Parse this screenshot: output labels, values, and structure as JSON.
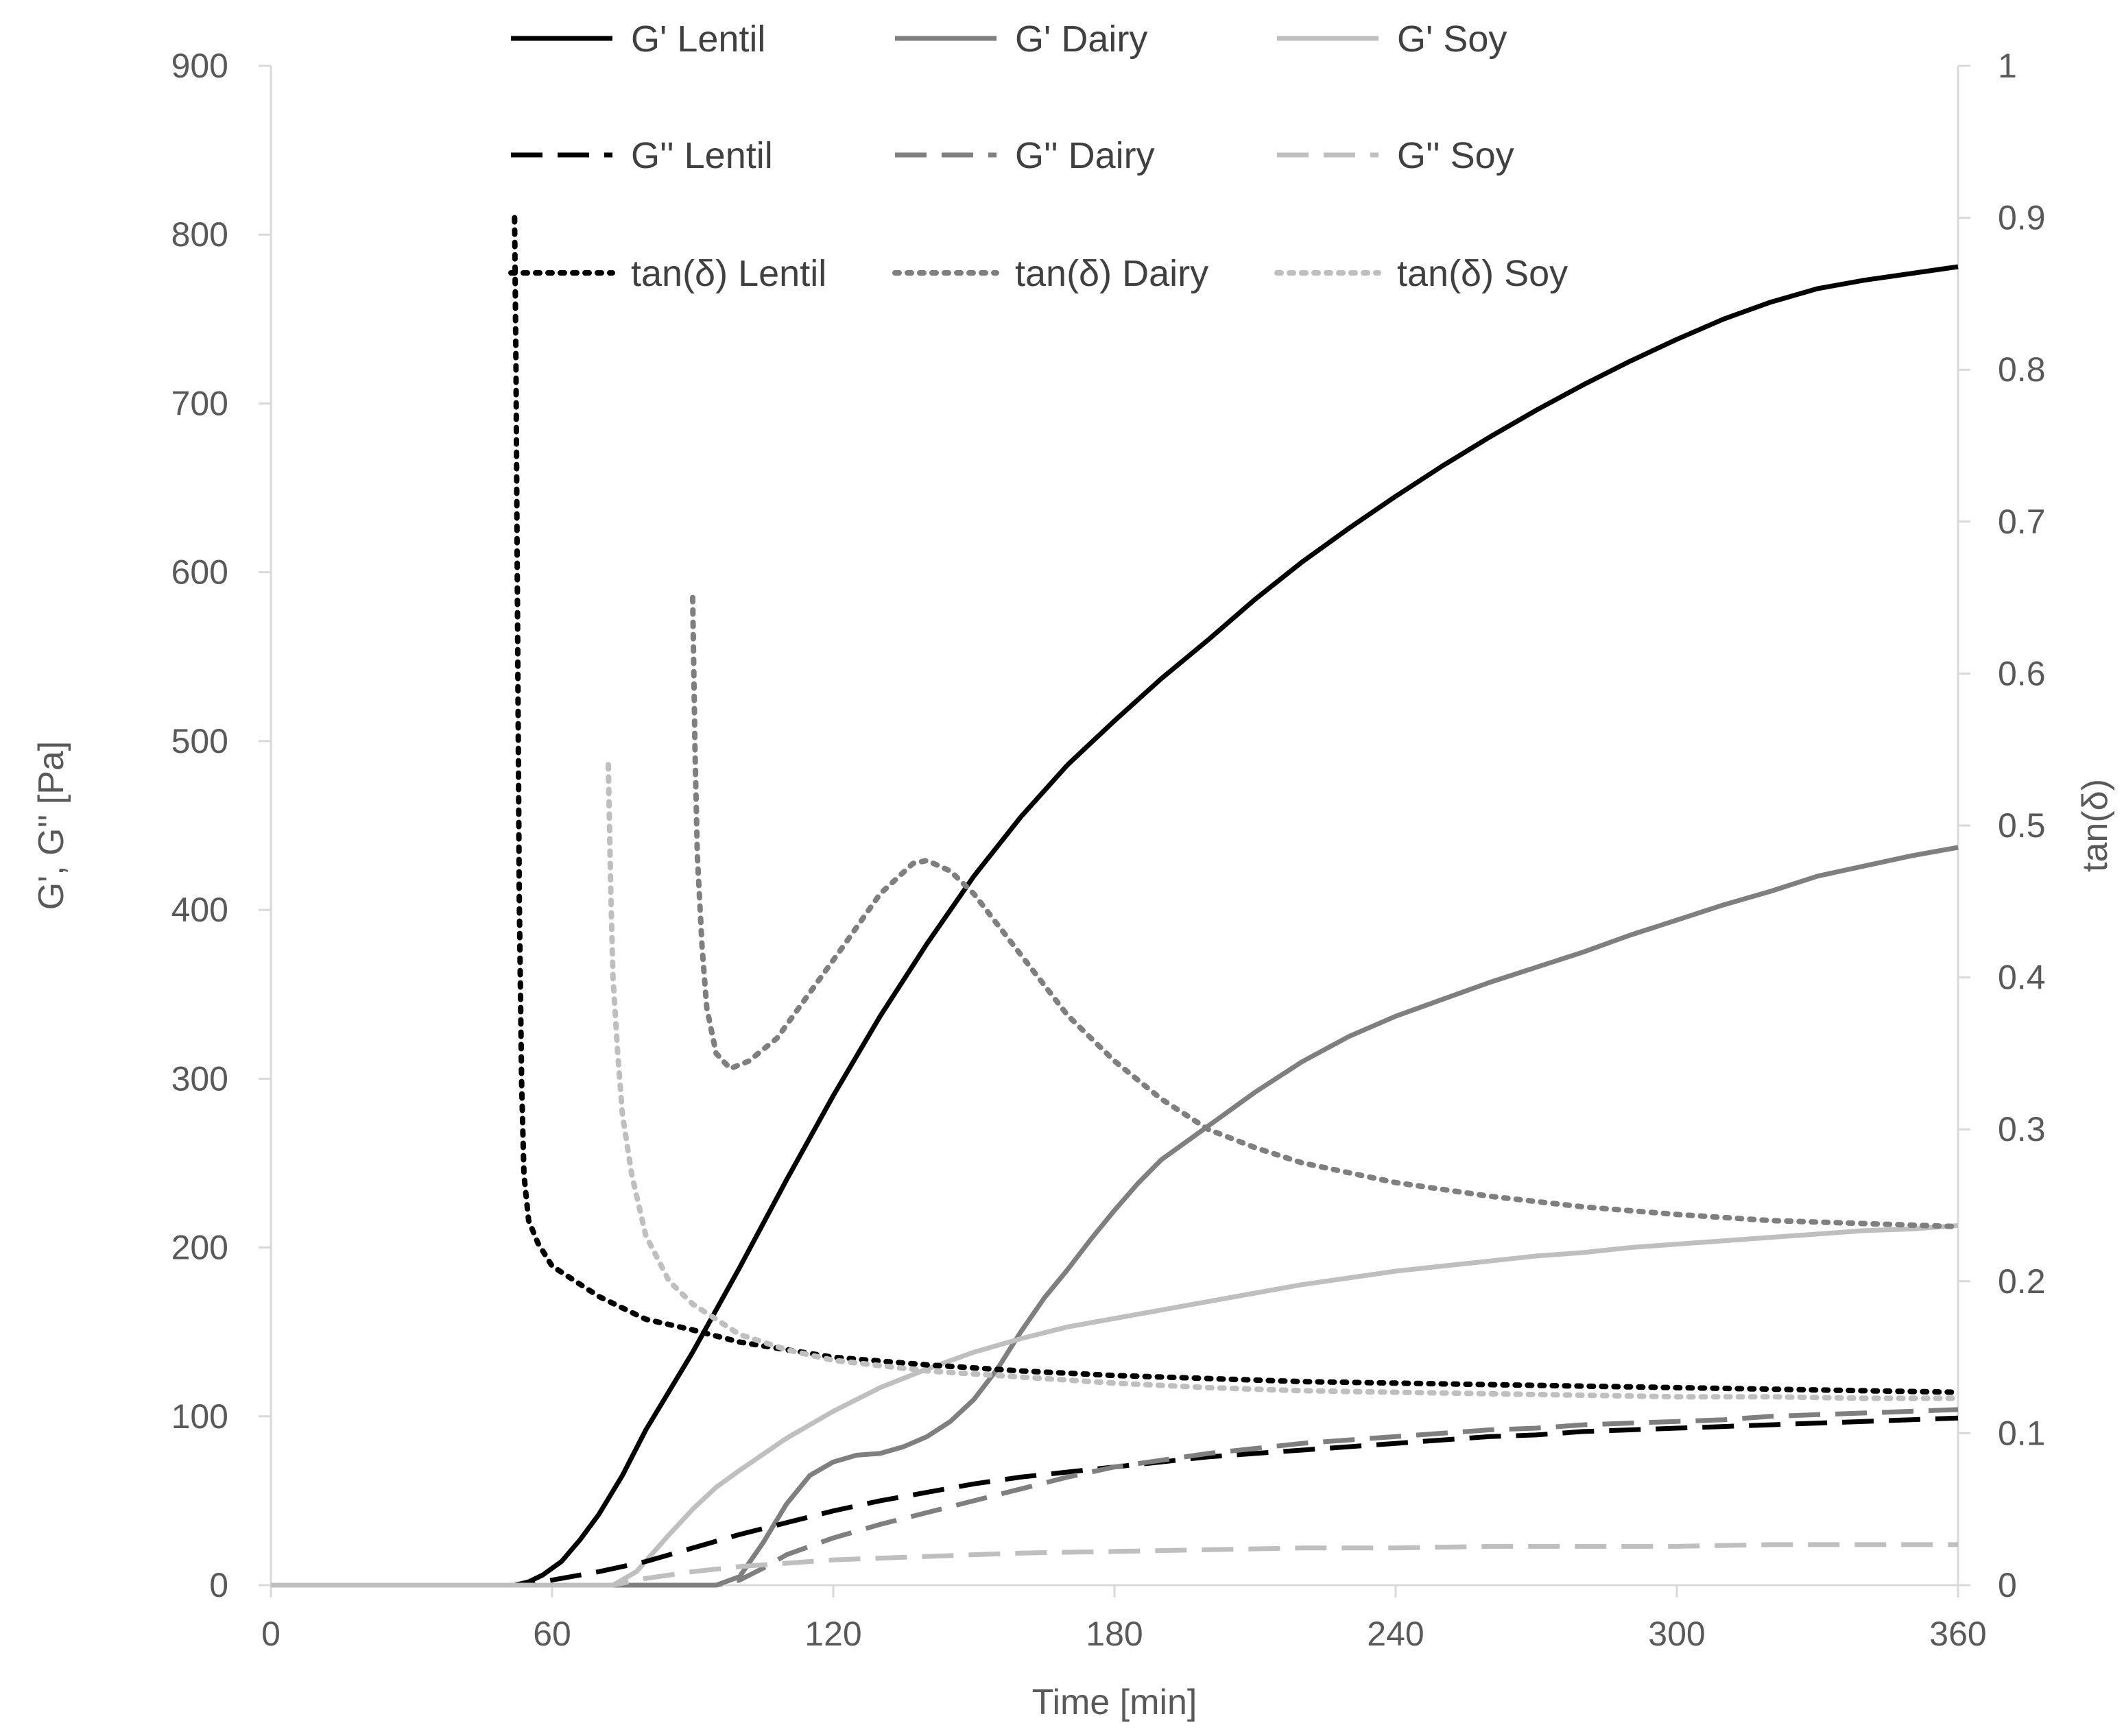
{
  "chart_data": {
    "type": "line",
    "title": "",
    "xlabel": "Time [min]",
    "ylabel": "G', G'' [Pa]",
    "y2label": "tan(δ)",
    "xlim": [
      0,
      360
    ],
    "ylim": [
      0,
      900
    ],
    "y2lim": [
      0,
      1
    ],
    "xticks": [
      0,
      60,
      120,
      180,
      240,
      300,
      360
    ],
    "yticks": [
      0,
      100,
      200,
      300,
      400,
      500,
      600,
      700,
      800,
      900
    ],
    "y2ticks": [
      0,
      0.1,
      0.2,
      0.3,
      0.4,
      0.5,
      0.6,
      0.7,
      0.8,
      0.9,
      1
    ],
    "grid": false,
    "legend_position": "top",
    "series": [
      {
        "name": "G' Lentil",
        "axis": "left",
        "color": "#000000",
        "dash": "solid",
        "points": [
          [
            0,
            0
          ],
          [
            52,
            0
          ],
          [
            55,
            2
          ],
          [
            58,
            6
          ],
          [
            62,
            14
          ],
          [
            66,
            27
          ],
          [
            70,
            42
          ],
          [
            75,
            65
          ],
          [
            80,
            92
          ],
          [
            90,
            138
          ],
          [
            100,
            188
          ],
          [
            110,
            240
          ],
          [
            120,
            290
          ],
          [
            130,
            337
          ],
          [
            140,
            380
          ],
          [
            150,
            420
          ],
          [
            160,
            455
          ],
          [
            170,
            486
          ],
          [
            180,
            512
          ],
          [
            190,
            537
          ],
          [
            200,
            560
          ],
          [
            210,
            584
          ],
          [
            220,
            606
          ],
          [
            230,
            626
          ],
          [
            240,
            645
          ],
          [
            250,
            663
          ],
          [
            260,
            680
          ],
          [
            270,
            696
          ],
          [
            280,
            711
          ],
          [
            290,
            725
          ],
          [
            300,
            738
          ],
          [
            310,
            750
          ],
          [
            320,
            760
          ],
          [
            330,
            768
          ],
          [
            340,
            773
          ],
          [
            350,
            777
          ],
          [
            360,
            781
          ]
        ]
      },
      {
        "name": "G' Dairy",
        "axis": "left",
        "color": "#7f7f7f",
        "dash": "solid",
        "points": [
          [
            0,
            0
          ],
          [
            95,
            0
          ],
          [
            100,
            5
          ],
          [
            105,
            25
          ],
          [
            110,
            48
          ],
          [
            115,
            65
          ],
          [
            120,
            73
          ],
          [
            125,
            77
          ],
          [
            130,
            78
          ],
          [
            135,
            82
          ],
          [
            140,
            88
          ],
          [
            145,
            97
          ],
          [
            150,
            110
          ],
          [
            155,
            128
          ],
          [
            160,
            150
          ],
          [
            165,
            170
          ],
          [
            170,
            187
          ],
          [
            175,
            205
          ],
          [
            180,
            222
          ],
          [
            185,
            238
          ],
          [
            190,
            252
          ],
          [
            200,
            272
          ],
          [
            210,
            292
          ],
          [
            220,
            310
          ],
          [
            230,
            325
          ],
          [
            240,
            337
          ],
          [
            250,
            347
          ],
          [
            260,
            357
          ],
          [
            270,
            366
          ],
          [
            280,
            375
          ],
          [
            290,
            385
          ],
          [
            300,
            394
          ],
          [
            310,
            403
          ],
          [
            320,
            411
          ],
          [
            330,
            420
          ],
          [
            340,
            426
          ],
          [
            350,
            432
          ],
          [
            360,
            437
          ]
        ]
      },
      {
        "name": "G' Soy",
        "axis": "left",
        "color": "#bfbfbf",
        "dash": "solid",
        "points": [
          [
            0,
            0
          ],
          [
            73,
            0
          ],
          [
            78,
            8
          ],
          [
            85,
            30
          ],
          [
            90,
            45
          ],
          [
            95,
            58
          ],
          [
            100,
            68
          ],
          [
            110,
            87
          ],
          [
            120,
            103
          ],
          [
            130,
            117
          ],
          [
            140,
            128
          ],
          [
            150,
            138
          ],
          [
            160,
            146
          ],
          [
            170,
            153
          ],
          [
            180,
            158
          ],
          [
            190,
            163
          ],
          [
            200,
            168
          ],
          [
            210,
            173
          ],
          [
            220,
            178
          ],
          [
            230,
            182
          ],
          [
            240,
            186
          ],
          [
            250,
            189
          ],
          [
            260,
            192
          ],
          [
            270,
            195
          ],
          [
            280,
            197
          ],
          [
            290,
            200
          ],
          [
            300,
            202
          ],
          [
            310,
            204
          ],
          [
            320,
            206
          ],
          [
            330,
            208
          ],
          [
            340,
            210
          ],
          [
            350,
            211
          ],
          [
            360,
            213
          ]
        ]
      },
      {
        "name": "G'' Lentil",
        "axis": "left",
        "color": "#000000",
        "dash": "long",
        "points": [
          [
            0,
            0
          ],
          [
            55,
            0
          ],
          [
            60,
            3
          ],
          [
            70,
            8
          ],
          [
            80,
            14
          ],
          [
            90,
            22
          ],
          [
            100,
            30
          ],
          [
            110,
            37
          ],
          [
            120,
            44
          ],
          [
            130,
            50
          ],
          [
            140,
            55
          ],
          [
            150,
            60
          ],
          [
            160,
            64
          ],
          [
            170,
            67
          ],
          [
            180,
            70
          ],
          [
            190,
            73
          ],
          [
            200,
            76
          ],
          [
            210,
            78
          ],
          [
            220,
            80
          ],
          [
            230,
            82
          ],
          [
            240,
            84
          ],
          [
            250,
            86
          ],
          [
            260,
            88
          ],
          [
            270,
            89
          ],
          [
            280,
            91
          ],
          [
            290,
            92
          ],
          [
            300,
            93
          ],
          [
            310,
            94
          ],
          [
            320,
            95
          ],
          [
            330,
            96
          ],
          [
            340,
            97
          ],
          [
            350,
            98
          ],
          [
            360,
            99
          ]
        ]
      },
      {
        "name": "G'' Dairy",
        "axis": "left",
        "color": "#7f7f7f",
        "dash": "long",
        "points": [
          [
            0,
            0
          ],
          [
            95,
            0
          ],
          [
            100,
            3
          ],
          [
            105,
            10
          ],
          [
            110,
            18
          ],
          [
            120,
            28
          ],
          [
            130,
            36
          ],
          [
            140,
            43
          ],
          [
            150,
            50
          ],
          [
            160,
            57
          ],
          [
            170,
            64
          ],
          [
            180,
            70
          ],
          [
            190,
            74
          ],
          [
            200,
            78
          ],
          [
            210,
            81
          ],
          [
            220,
            84
          ],
          [
            230,
            86
          ],
          [
            240,
            88
          ],
          [
            250,
            90
          ],
          [
            260,
            92
          ],
          [
            270,
            93
          ],
          [
            280,
            95
          ],
          [
            290,
            96
          ],
          [
            300,
            97
          ],
          [
            310,
            98
          ],
          [
            320,
            100
          ],
          [
            330,
            101
          ],
          [
            340,
            102
          ],
          [
            350,
            103
          ],
          [
            360,
            104
          ]
        ]
      },
      {
        "name": "G'' Soy",
        "axis": "left",
        "color": "#bfbfbf",
        "dash": "long",
        "points": [
          [
            0,
            0
          ],
          [
            73,
            0
          ],
          [
            80,
            4
          ],
          [
            90,
            8
          ],
          [
            100,
            11
          ],
          [
            110,
            13
          ],
          [
            120,
            15
          ],
          [
            140,
            17
          ],
          [
            160,
            19
          ],
          [
            180,
            20
          ],
          [
            200,
            21
          ],
          [
            220,
            22
          ],
          [
            240,
            22
          ],
          [
            260,
            23
          ],
          [
            280,
            23
          ],
          [
            300,
            23
          ],
          [
            320,
            24
          ],
          [
            340,
            24
          ],
          [
            360,
            24
          ]
        ]
      },
      {
        "name": "tan(δ) Lentil",
        "axis": "right",
        "color": "#000000",
        "dash": "dot",
        "points": [
          [
            52,
            0.9
          ],
          [
            52.3,
            0.8
          ],
          [
            52.7,
            0.6
          ],
          [
            53,
            0.45
          ],
          [
            53.5,
            0.33
          ],
          [
            54,
            0.27
          ],
          [
            55,
            0.24
          ],
          [
            57,
            0.225
          ],
          [
            60,
            0.21
          ],
          [
            70,
            0.19
          ],
          [
            80,
            0.175
          ],
          [
            90,
            0.168
          ],
          [
            100,
            0.16
          ],
          [
            110,
            0.155
          ],
          [
            120,
            0.15
          ],
          [
            140,
            0.145
          ],
          [
            160,
            0.141
          ],
          [
            180,
            0.138
          ],
          [
            200,
            0.136
          ],
          [
            220,
            0.134
          ],
          [
            240,
            0.133
          ],
          [
            260,
            0.132
          ],
          [
            280,
            0.131
          ],
          [
            300,
            0.13
          ],
          [
            320,
            0.129
          ],
          [
            340,
            0.128
          ],
          [
            360,
            0.127
          ]
        ]
      },
      {
        "name": "tan(δ) Dairy",
        "axis": "right",
        "color": "#7f7f7f",
        "dash": "dot",
        "points": [
          [
            90,
            0.65
          ],
          [
            90.5,
            0.55
          ],
          [
            91,
            0.48
          ],
          [
            92,
            0.42
          ],
          [
            93,
            0.38
          ],
          [
            95,
            0.35
          ],
          [
            98,
            0.34
          ],
          [
            102,
            0.345
          ],
          [
            108,
            0.36
          ],
          [
            115,
            0.39
          ],
          [
            122,
            0.42
          ],
          [
            130,
            0.455
          ],
          [
            137,
            0.475
          ],
          [
            140,
            0.477
          ],
          [
            145,
            0.47
          ],
          [
            150,
            0.455
          ],
          [
            160,
            0.415
          ],
          [
            170,
            0.375
          ],
          [
            180,
            0.345
          ],
          [
            190,
            0.32
          ],
          [
            200,
            0.3
          ],
          [
            210,
            0.288
          ],
          [
            220,
            0.278
          ],
          [
            240,
            0.265
          ],
          [
            260,
            0.256
          ],
          [
            280,
            0.249
          ],
          [
            300,
            0.244
          ],
          [
            320,
            0.24
          ],
          [
            340,
            0.238
          ],
          [
            360,
            0.236
          ]
        ]
      },
      {
        "name": "tan(δ) Soy",
        "axis": "right",
        "color": "#bfbfbf",
        "dash": "dot",
        "points": [
          [
            72,
            0.54
          ],
          [
            72.5,
            0.46
          ],
          [
            73,
            0.4
          ],
          [
            74,
            0.35
          ],
          [
            75,
            0.31
          ],
          [
            77,
            0.27
          ],
          [
            80,
            0.23
          ],
          [
            85,
            0.2
          ],
          [
            90,
            0.185
          ],
          [
            95,
            0.175
          ],
          [
            100,
            0.165
          ],
          [
            110,
            0.155
          ],
          [
            120,
            0.148
          ],
          [
            140,
            0.141
          ],
          [
            160,
            0.137
          ],
          [
            180,
            0.133
          ],
          [
            200,
            0.13
          ],
          [
            220,
            0.128
          ],
          [
            240,
            0.127
          ],
          [
            260,
            0.126
          ],
          [
            280,
            0.125
          ],
          [
            300,
            0.124
          ],
          [
            320,
            0.124
          ],
          [
            340,
            0.123
          ],
          [
            360,
            0.123
          ]
        ]
      }
    ]
  }
}
